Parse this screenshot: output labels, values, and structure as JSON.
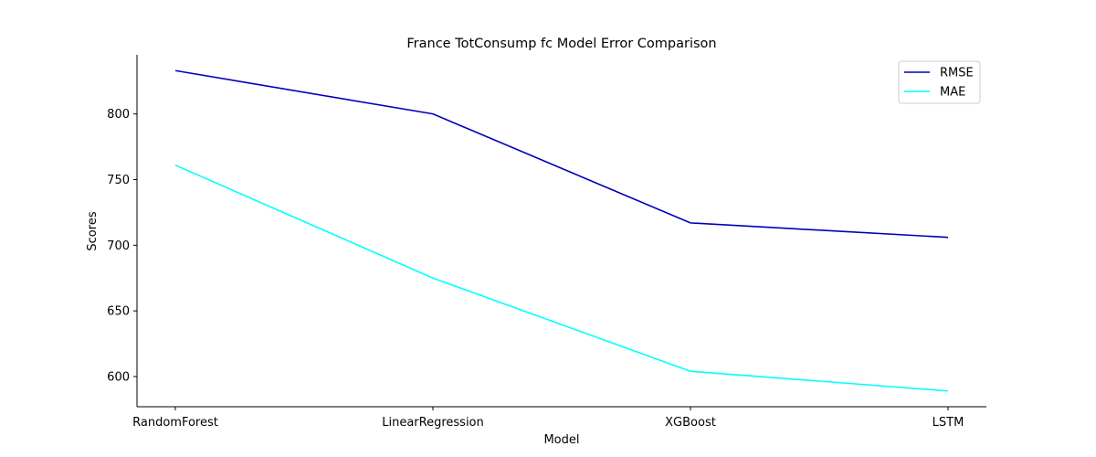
{
  "chart_data": {
    "type": "line",
    "title": "France TotConsump fc Model Error Comparison",
    "xlabel": "Model",
    "ylabel": "Scores",
    "categories": [
      "RandomForest",
      "LinearRegression",
      "XGBoost",
      "LSTM"
    ],
    "series": [
      {
        "name": "RMSE",
        "color": "#0000bb",
        "values": [
          833,
          800,
          717,
          706
        ]
      },
      {
        "name": "MAE",
        "color": "#00ffff",
        "values": [
          761,
          675,
          604,
          589
        ]
      }
    ],
    "yticks": [
      600,
      650,
      700,
      750,
      800
    ],
    "ylim": [
      577,
      845
    ],
    "grid": false,
    "legend": "top-right"
  }
}
